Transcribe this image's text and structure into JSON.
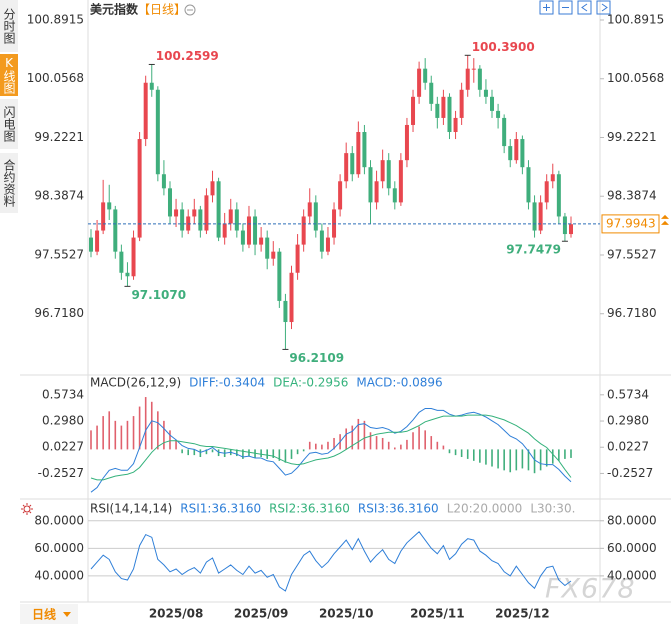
{
  "sidebar": {
    "tabs": [
      "分时图",
      "K线图",
      "闪电图",
      "合约资料"
    ]
  },
  "period_button": "日线",
  "watermark": "FX678",
  "chart_data": [
    {
      "type": "candlestick",
      "title": "美元指数",
      "subtitle": "【日线】",
      "categories": [
        null,
        null,
        null,
        null,
        null,
        null,
        null,
        null,
        null,
        null,
        null,
        null,
        null,
        null,
        "2025/08",
        null,
        null,
        null,
        null,
        null,
        null,
        null,
        null,
        null,
        null,
        null,
        null,
        null,
        "2025/09",
        null,
        null,
        null,
        null,
        null,
        null,
        null,
        null,
        null,
        null,
        null,
        null,
        null,
        "2025/10",
        null,
        null,
        null,
        null,
        null,
        null,
        null,
        null,
        null,
        null,
        null,
        null,
        null,
        null,
        "2025/11",
        null,
        null,
        null,
        null,
        null,
        null,
        null,
        null,
        null,
        null,
        null,
        null,
        null,
        "2025/12",
        null,
        null,
        null,
        null,
        null,
        null,
        null,
        null
      ],
      "candles": [
        [
          97.8,
          97.92,
          97.52,
          97.6
        ],
        [
          97.6,
          98.05,
          97.55,
          97.9
        ],
        [
          97.9,
          98.62,
          97.85,
          98.3
        ],
        [
          98.3,
          98.55,
          98.05,
          98.2
        ],
        [
          98.2,
          98.25,
          97.5,
          97.6
        ],
        [
          97.6,
          97.7,
          97.2,
          97.3
        ],
        [
          97.3,
          97.45,
          97.107,
          97.25
        ],
        [
          97.25,
          97.9,
          97.2,
          97.8
        ],
        [
          97.8,
          99.3,
          97.75,
          99.2
        ],
        [
          99.2,
          100.1,
          99.1,
          100.0
        ],
        [
          100.0,
          100.2599,
          99.8,
          99.9
        ],
        [
          99.9,
          99.95,
          98.6,
          98.7
        ],
        [
          98.7,
          98.9,
          98.4,
          98.5
        ],
        [
          98.5,
          98.6,
          98.0,
          98.1
        ],
        [
          98.1,
          98.35,
          97.95,
          98.2
        ],
        [
          98.2,
          98.3,
          97.8,
          97.9
        ],
        [
          97.9,
          98.2,
          97.85,
          98.1
        ],
        [
          98.1,
          98.35,
          98.0,
          98.2
        ],
        [
          98.2,
          98.25,
          97.8,
          97.9
        ],
        [
          97.9,
          98.5,
          97.85,
          98.4
        ],
        [
          98.4,
          98.75,
          98.3,
          98.6
        ],
        [
          98.6,
          98.65,
          97.75,
          97.8
        ],
        [
          97.8,
          98.15,
          97.7,
          98.0
        ],
        [
          98.0,
          98.35,
          97.9,
          98.2
        ],
        [
          98.2,
          98.3,
          97.8,
          97.9
        ],
        [
          97.9,
          98.0,
          97.6,
          97.7
        ],
        [
          97.7,
          98.25,
          97.65,
          98.1
        ],
        [
          98.1,
          98.2,
          97.55,
          97.7
        ],
        [
          97.7,
          97.95,
          97.6,
          97.8
        ],
        [
          97.8,
          97.9,
          97.35,
          97.5
        ],
        [
          97.5,
          97.75,
          97.4,
          97.6
        ],
        [
          97.6,
          97.65,
          96.8,
          96.9
        ],
        [
          96.9,
          97.0,
          96.2109,
          96.6
        ],
        [
          96.6,
          97.4,
          96.5,
          97.3
        ],
        [
          97.3,
          97.85,
          97.2,
          97.7
        ],
        [
          97.7,
          98.2,
          97.6,
          98.1
        ],
        [
          98.1,
          98.5,
          98.0,
          98.3
        ],
        [
          98.3,
          98.4,
          97.8,
          97.9
        ],
        [
          97.9,
          98.0,
          97.5,
          97.6
        ],
        [
          97.6,
          97.95,
          97.55,
          97.8
        ],
        [
          97.8,
          98.3,
          97.7,
          98.2
        ],
        [
          98.2,
          98.7,
          98.1,
          98.6
        ],
        [
          98.6,
          99.15,
          98.5,
          99.0
        ],
        [
          99.0,
          99.1,
          98.6,
          98.7
        ],
        [
          98.7,
          99.45,
          98.65,
          99.3
        ],
        [
          99.3,
          99.4,
          98.7,
          98.8
        ],
        [
          98.8,
          98.9,
          98.0,
          98.3
        ],
        [
          98.3,
          98.75,
          98.2,
          98.6
        ],
        [
          98.6,
          99.05,
          98.5,
          98.9
        ],
        [
          98.9,
          99.0,
          98.4,
          98.5
        ],
        [
          98.5,
          98.6,
          98.2,
          98.3
        ],
        [
          98.3,
          99.0,
          98.25,
          98.9
        ],
        [
          98.9,
          99.5,
          98.8,
          99.4
        ],
        [
          99.4,
          99.9,
          99.3,
          99.8
        ],
        [
          99.8,
          100.3,
          99.7,
          100.2
        ],
        [
          100.2,
          100.35,
          99.9,
          100.0
        ],
        [
          100.0,
          100.1,
          99.6,
          99.7
        ],
        [
          99.7,
          99.8,
          99.35,
          99.5
        ],
        [
          99.5,
          99.9,
          99.4,
          99.8
        ],
        [
          99.8,
          99.85,
          99.2,
          99.3
        ],
        [
          99.3,
          99.6,
          99.2,
          99.5
        ],
        [
          99.5,
          100.0,
          99.4,
          99.9
        ],
        [
          99.9,
          100.39,
          99.8,
          100.2
        ],
        [
          100.2,
          100.35,
          100.0,
          100.2
        ],
        [
          100.2,
          100.25,
          99.8,
          99.9
        ],
        [
          99.9,
          100.05,
          99.7,
          99.8
        ],
        [
          99.8,
          99.9,
          99.5,
          99.6
        ],
        [
          99.6,
          99.7,
          99.35,
          99.5
        ],
        [
          99.5,
          99.55,
          99.0,
          99.1
        ],
        [
          99.1,
          99.2,
          98.8,
          98.9
        ],
        [
          98.9,
          99.3,
          98.85,
          99.2
        ],
        [
          99.2,
          99.25,
          98.7,
          98.8
        ],
        [
          98.8,
          98.9,
          98.2,
          98.3
        ],
        [
          98.3,
          98.4,
          97.8,
          97.9
        ],
        [
          97.9,
          98.4,
          97.85,
          98.3
        ],
        [
          98.3,
          98.7,
          98.2,
          98.6
        ],
        [
          98.6,
          98.85,
          98.5,
          98.7
        ],
        [
          98.7,
          98.75,
          98.0,
          98.1
        ],
        [
          98.1,
          98.15,
          97.7479,
          97.85
        ],
        [
          97.85,
          98.1,
          97.8,
          97.99
        ]
      ],
      "ylim": [
        95.89,
        100.8915
      ],
      "yticks": [
        100.8915,
        100.0568,
        99.2221,
        98.3874,
        97.5527,
        {
          "value": 96.718,
          "label": "96.7180"
        }
      ],
      "grid": false,
      "up_color": "#e8474f",
      "down_color": "#3fae7c",
      "annotations": [
        100.2599,
        {
          "value": 97.107,
          "label": "97.1070"
        },
        96.2109,
        {
          "value": 100.39,
          "label": "100.3900"
        },
        97.7479
      ],
      "last_price": 97.9943,
      "last_price_color": "#f08a00"
    },
    {
      "type": "macd",
      "title": "MACD(26,12,9)",
      "ylim": [
        -0.5,
        0.75
      ],
      "yticks": [
        0.5734,
        {
          "value": 0.298,
          "label": "0.2980"
        },
        0.0227,
        -0.2527
      ],
      "grid": false,
      "up_color": "#e0606c",
      "down_color": "#3fae7c",
      "series": [
        {
          "name": "DIFF:-0.3404",
          "color": "#2f7fd8",
          "kind": "line",
          "values": [
            -0.45,
            -0.4,
            -0.3,
            -0.22,
            -0.2,
            -0.22,
            -0.22,
            -0.15,
            0.02,
            0.2,
            0.3,
            0.28,
            0.22,
            0.15,
            0.1,
            0.04,
            0.01,
            0,
            -0.03,
            -0.01,
            0.02,
            -0.03,
            -0.04,
            -0.03,
            -0.05,
            -0.08,
            -0.07,
            -0.09,
            -0.09,
            -0.12,
            -0.13,
            -0.2,
            -0.27,
            -0.25,
            -0.19,
            -0.11,
            -0.04,
            -0.03,
            -0.05,
            -0.04,
            0.01,
            0.08,
            0.16,
            0.19,
            0.26,
            0.27,
            0.23,
            0.22,
            0.23,
            0.21,
            0.17,
            0.19,
            0.24,
            0.31,
            0.39,
            0.43,
            0.43,
            0.41,
            0.41,
            0.37,
            0.35,
            0.36,
            0.38,
            0.39,
            0.37,
            0.34,
            0.3,
            0.26,
            0.2,
            0.14,
            0.11,
            0.06,
            -0.02,
            -0.11,
            -0.15,
            -0.16,
            -0.16,
            -0.21,
            -0.28,
            -0.3404
          ]
        },
        {
          "name": "DEA:-0.2956",
          "color": "#35b27c",
          "kind": "line",
          "values": [
            -0.3,
            -0.32,
            -0.32,
            -0.3,
            -0.28,
            -0.27,
            -0.26,
            -0.24,
            -0.19,
            -0.11,
            -0.03,
            0.03,
            0.07,
            0.09,
            0.09,
            0.08,
            0.07,
            0.06,
            0.04,
            0.03,
            0.03,
            0.02,
            0.01,
            0,
            -0.01,
            -0.02,
            -0.03,
            -0.04,
            -0.05,
            -0.06,
            -0.07,
            -0.1,
            -0.13,
            -0.15,
            -0.16,
            -0.15,
            -0.13,
            -0.11,
            -0.1,
            -0.09,
            -0.07,
            -0.04,
            0,
            0.04,
            0.08,
            0.12,
            0.14,
            0.16,
            0.17,
            0.18,
            0.18,
            0.18,
            0.19,
            0.22,
            0.25,
            0.29,
            0.31,
            0.33,
            0.35,
            0.35,
            0.35,
            0.35,
            0.36,
            0.36,
            0.36,
            0.36,
            0.35,
            0.33,
            0.31,
            0.28,
            0.25,
            0.21,
            0.17,
            0.11,
            0.06,
            0.02,
            -0.05,
            -0.12,
            -0.21,
            -0.2956
          ]
        },
        {
          "name": "MACD:-0.0896",
          "color": "#2f7fd8",
          "kind": "histogram",
          "values": [
            0.2,
            0.25,
            0.35,
            0.4,
            0.3,
            0.25,
            0.3,
            0.35,
            0.45,
            0.55,
            0.5,
            0.4,
            0.3,
            0.2,
            0.1,
            -0.04,
            -0.06,
            -0.06,
            -0.08,
            -0.05,
            -0.03,
            -0.07,
            -0.08,
            -0.06,
            -0.07,
            -0.1,
            -0.07,
            -0.09,
            -0.08,
            -0.1,
            -0.09,
            -0.12,
            -0.14,
            -0.1,
            -0.05,
            -0.02,
            0.08,
            0.06,
            0.05,
            0.08,
            0.12,
            0.16,
            0.22,
            0.25,
            0.32,
            0.3,
            0.18,
            0.14,
            0.12,
            0.08,
            0.02,
            0.05,
            0.1,
            0.18,
            0.24,
            0.2,
            0.14,
            0.08,
            0.04,
            -0.04,
            -0.06,
            -0.08,
            -0.1,
            -0.12,
            -0.14,
            -0.16,
            -0.18,
            -0.2,
            -0.22,
            -0.24,
            -0.22,
            -0.2,
            -0.22,
            -0.25,
            -0.22,
            -0.18,
            -0.15,
            -0.12,
            -0.1,
            -0.0896
          ]
        }
      ]
    },
    {
      "type": "rsi",
      "title": "RSI(14,14,14)",
      "ylim": [
        22.5,
        90
      ],
      "yticks": [
        {
          "value": 80,
          "label": "80.0000"
        },
        {
          "value": 60,
          "label": "60.0000"
        },
        {
          "value": 40,
          "label": "40.0000"
        }
      ],
      "grid": true,
      "series": [
        {
          "name": "RSI1:36.3160",
          "color": "#2f7fd8",
          "kind": "line",
          "values": [
            45,
            50,
            55,
            52,
            43,
            38,
            37,
            45,
            62,
            70,
            68,
            52,
            48,
            43,
            45,
            41,
            44,
            46,
            42,
            50,
            53,
            42,
            45,
            48,
            44,
            41,
            47,
            42,
            44,
            39,
            41,
            32,
            29,
            41,
            48,
            55,
            58,
            51,
            46,
            50,
            56,
            61,
            66,
            59,
            67,
            58,
            50,
            55,
            59,
            52,
            49,
            58,
            64,
            68,
            72,
            66,
            60,
            56,
            62,
            52,
            56,
            63,
            67,
            66,
            58,
            55,
            51,
            49,
            43,
            40,
            47,
            41,
            35,
            31,
            40,
            46,
            47,
            37,
            33,
            36.316
          ]
        }
      ],
      "legend_extra": [
        {
          "text": "RSI2:36.3160",
          "color": "#35b27c"
        },
        {
          "text": "RSI3:36.3160",
          "color": "#2f7fd8"
        },
        {
          "text": "L20:20.0000",
          "color": "#aaaaaa"
        },
        {
          "text": "L30:30.",
          "color": "#aaaaaa"
        }
      ]
    }
  ]
}
